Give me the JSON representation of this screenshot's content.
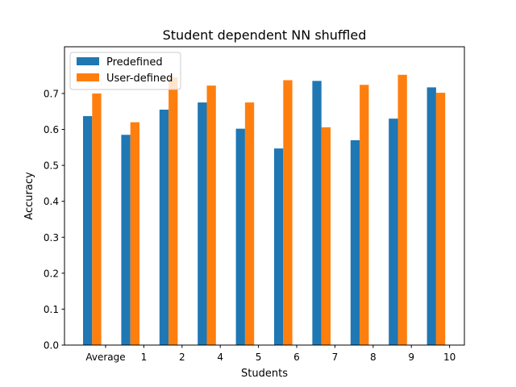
{
  "chart_data": {
    "type": "bar",
    "title": "Student dependent NN shuffled",
    "xlabel": "Students",
    "ylabel": "Accuracy",
    "categories": [
      "Average",
      "1",
      "2",
      "4",
      "5",
      "6",
      "7",
      "8",
      "9",
      "10"
    ],
    "series": [
      {
        "name": "Predefined",
        "color": "#1f77b4",
        "values": [
          0.637,
          0.585,
          0.655,
          0.675,
          0.602,
          0.547,
          0.735,
          0.57,
          0.63,
          0.717
        ]
      },
      {
        "name": "User-defined",
        "color": "#ff7f0e",
        "values": [
          0.7,
          0.62,
          0.745,
          0.722,
          0.675,
          0.737,
          0.606,
          0.724,
          0.752,
          0.702
        ]
      }
    ],
    "ylim": [
      0,
      0.83
    ],
    "yticks": [
      "0.0",
      "0.1",
      "0.2",
      "0.3",
      "0.4",
      "0.5",
      "0.6",
      "0.7"
    ],
    "grid": false,
    "legend_position": "upper-left"
  }
}
